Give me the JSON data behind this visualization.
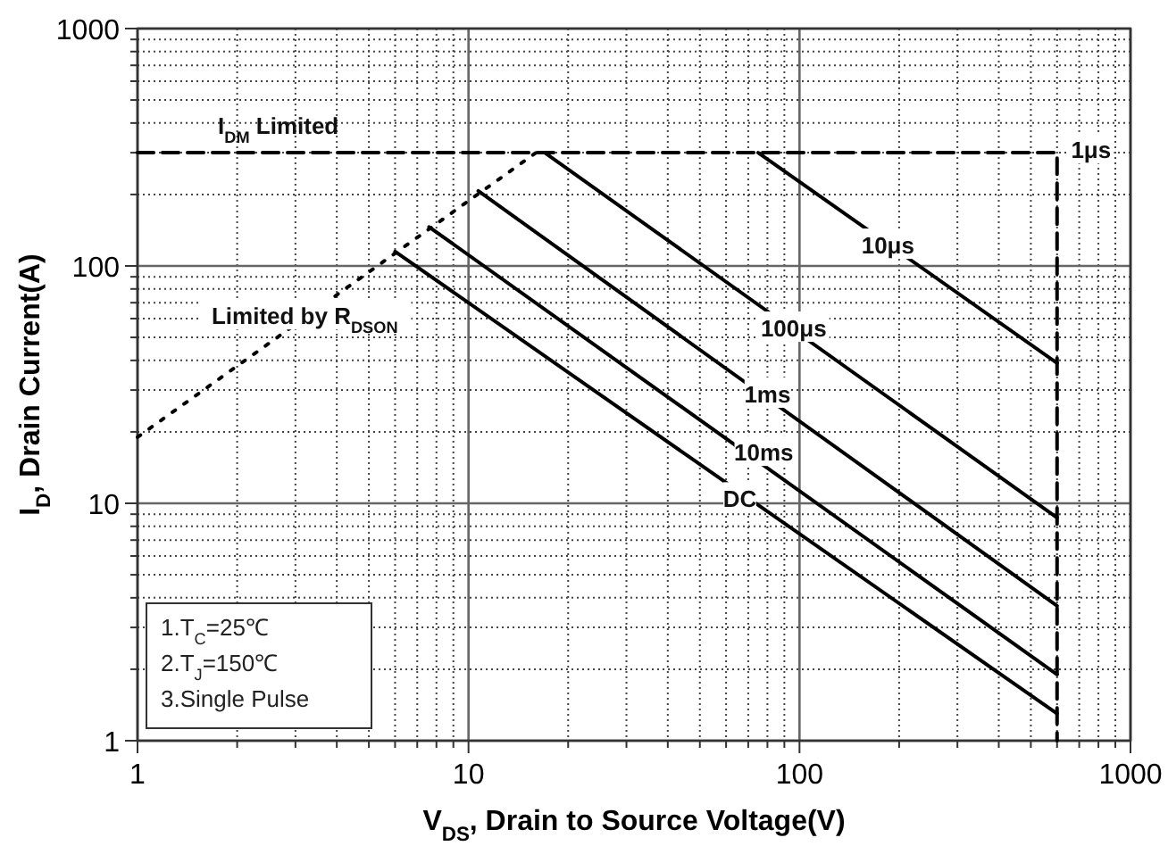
{
  "chart_data": {
    "type": "line",
    "xlabel": "V$_{DS}$, Drain to Source Voltage(V)",
    "ylabel": "I$_{D}$, Drain Current(A)",
    "log": "xy",
    "grid": true,
    "marker": "none",
    "xlim": [
      1,
      1000
    ],
    "ylim": [
      1,
      1000
    ],
    "xticks": [
      1,
      {
        "value": 2,
        "label": null
      },
      {
        "value": 3,
        "label": null
      },
      {
        "value": 4,
        "label": null
      },
      {
        "value": 5,
        "label": null
      },
      {
        "value": 6,
        "label": null
      },
      {
        "value": 7,
        "label": null
      },
      {
        "value": 8,
        "label": null
      },
      {
        "value": 9,
        "label": null
      },
      10,
      {
        "value": 20,
        "label": null
      },
      {
        "value": 30,
        "label": null
      },
      {
        "value": 40,
        "label": null
      },
      {
        "value": 50,
        "label": null
      },
      {
        "value": 60,
        "label": null
      },
      {
        "value": 70,
        "label": null
      },
      {
        "value": 80,
        "label": null
      },
      {
        "value": 90,
        "label": null
      },
      100,
      {
        "value": 200,
        "label": null
      },
      {
        "value": 300,
        "label": null
      },
      {
        "value": 400,
        "label": null
      },
      {
        "value": 500,
        "label": null
      },
      {
        "value": 600,
        "label": null
      },
      {
        "value": 700,
        "label": null
      },
      {
        "value": 800,
        "label": null
      },
      {
        "value": 900,
        "label": null
      },
      1000
    ],
    "yticks": [
      1,
      {
        "value": 2,
        "label": null
      },
      {
        "value": 3,
        "label": null
      },
      {
        "value": 4,
        "label": null
      },
      {
        "value": 5,
        "label": null
      },
      {
        "value": 6,
        "label": null
      },
      {
        "value": 7,
        "label": null
      },
      {
        "value": 8,
        "label": null
      },
      {
        "value": 9,
        "label": null
      },
      10,
      {
        "value": 20,
        "label": null
      },
      {
        "value": 30,
        "label": null
      },
      {
        "value": 40,
        "label": null
      },
      {
        "value": 50,
        "label": null
      },
      {
        "value": 60,
        "label": null
      },
      {
        "value": 70,
        "label": null
      },
      {
        "value": 80,
        "label": null
      },
      {
        "value": 90,
        "label": null
      },
      100,
      {
        "value": 200,
        "label": null
      },
      {
        "value": 300,
        "label": null
      },
      {
        "value": 400,
        "label": null
      },
      {
        "value": 500,
        "label": null
      },
      {
        "value": 600,
        "label": null
      },
      {
        "value": 700,
        "label": null
      },
      {
        "value": 800,
        "label": null
      },
      {
        "value": 900,
        "label": null
      },
      1000
    ],
    "series": [
      {
        "color": "#000000",
        "line_style": "dashed",
        "x": [
          1,
          600,
          600
        ],
        "values": [
          300,
          300,
          1
        ]
      },
      {
        "color": "#000000",
        "line_style": "dotted",
        "x": [
          1,
          16
        ],
        "values": [
          19,
          300
        ]
      },
      {
        "color": "#000000",
        "line_style": "solid",
        "x": [
          75,
          600
        ],
        "values": [
          300,
          39
        ]
      },
      {
        "color": "#000000",
        "line_style": "solid",
        "x": [
          17,
          600
        ],
        "values": [
          300,
          8.7
        ]
      },
      {
        "color": "#000000",
        "line_style": "solid",
        "x": [
          10.7,
          600
        ],
        "values": [
          207,
          3.7
        ]
      },
      {
        "color": "#000000",
        "line_style": "solid",
        "x": [
          7.6,
          600
        ],
        "values": [
          146,
          1.9
        ]
      },
      {
        "color": "#000000",
        "line_style": "solid",
        "x": [
          6,
          600
        ],
        "values": [
          115,
          1.3
        ]
      }
    ],
    "annotations": [
      "I$_{DM}$ Limited",
      {
        "text": "Limited by R$_{DSON}$",
        "x": 3.2,
        "y": 62
      },
      {
        "text": "1μs",
        "x": 760,
        "y": 310
      },
      {
        "text": "10μs",
        "x": 185,
        "y": 123
      },
      {
        "text": "100μs",
        "x": 96,
        "y": 55
      },
      {
        "text": "1ms",
        "x": 80,
        "y": 29
      },
      {
        "text": "10ms",
        "x": 78,
        "y": 16.5
      },
      {
        "text": "DC",
        "x": 66,
        "y": 10.5
      },
      "1.T$_{C}$=25℃",
      "2.T$_{J}$=150℃",
      "3.Single Pulse"
    ]
  }
}
